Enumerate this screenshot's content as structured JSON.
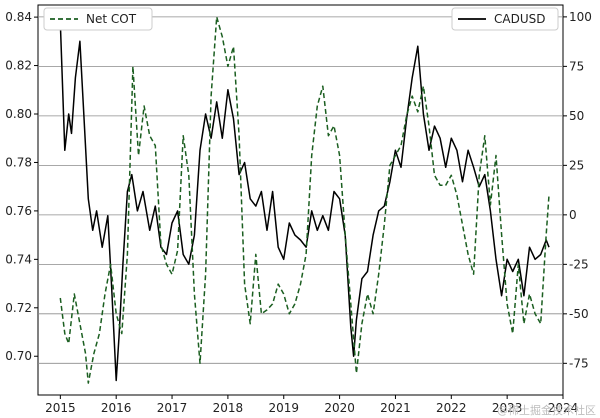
{
  "chart_data": {
    "type": "line",
    "title": "",
    "xlabel": "",
    "ylabel_left": "",
    "ylabel_right": "",
    "x_range": [
      2014.6,
      2024.0
    ],
    "x_ticks": [
      "2015",
      "2016",
      "2017",
      "2018",
      "2019",
      "2020",
      "2021",
      "2022",
      "2023",
      "2024"
    ],
    "ylim_left": [
      0.684,
      0.845
    ],
    "yticks_left": [
      "0.70",
      "0.72",
      "0.74",
      "0.76",
      "0.78",
      "0.80",
      "0.82",
      "0.84"
    ],
    "ylim_right": [
      -91,
      106
    ],
    "yticks_right": [
      "-75",
      "-50",
      "-25",
      "0",
      "25",
      "50",
      "75",
      "100"
    ],
    "grid": "horizontal lines at right-axis ticks",
    "legend_left": {
      "placement": "top-left",
      "label": "Net COT"
    },
    "legend_right": {
      "placement": "top-right",
      "label": "CADUSD"
    },
    "series": [
      {
        "name": "CADUSD",
        "axis": "left",
        "color": "#000000",
        "style": "solid",
        "x": [
          2015.0,
          2015.08,
          2015.15,
          2015.2,
          2015.27,
          2015.35,
          2015.42,
          2015.5,
          2015.58,
          2015.65,
          2015.75,
          2015.85,
          2015.92,
          2016.0,
          2016.05,
          2016.12,
          2016.2,
          2016.28,
          2016.38,
          2016.48,
          2016.6,
          2016.7,
          2016.8,
          2016.9,
          2017.0,
          2017.1,
          2017.2,
          2017.3,
          2017.4,
          2017.5,
          2017.6,
          2017.7,
          2017.8,
          2017.9,
          2018.0,
          2018.1,
          2018.2,
          2018.3,
          2018.4,
          2018.5,
          2018.6,
          2018.7,
          2018.8,
          2018.9,
          2019.0,
          2019.1,
          2019.2,
          2019.3,
          2019.4,
          2019.5,
          2019.6,
          2019.7,
          2019.8,
          2019.9,
          2020.0,
          2020.1,
          2020.2,
          2020.25,
          2020.3,
          2020.4,
          2020.5,
          2020.6,
          2020.7,
          2020.8,
          2020.9,
          2021.0,
          2021.1,
          2021.2,
          2021.3,
          2021.4,
          2021.5,
          2021.6,
          2021.7,
          2021.8,
          2021.9,
          2022.0,
          2022.1,
          2022.2,
          2022.3,
          2022.4,
          2022.5,
          2022.6,
          2022.7,
          2022.8,
          2022.9,
          2023.0,
          2023.1,
          2023.2,
          2023.3,
          2023.4,
          2023.5,
          2023.6,
          2023.7,
          2023.75
        ],
        "y": [
          0.838,
          0.785,
          0.8,
          0.792,
          0.815,
          0.83,
          0.8,
          0.765,
          0.752,
          0.76,
          0.745,
          0.758,
          0.728,
          0.69,
          0.708,
          0.738,
          0.768,
          0.775,
          0.76,
          0.768,
          0.752,
          0.762,
          0.745,
          0.742,
          0.755,
          0.76,
          0.742,
          0.738,
          0.75,
          0.785,
          0.8,
          0.79,
          0.805,
          0.79,
          0.81,
          0.798,
          0.775,
          0.78,
          0.765,
          0.762,
          0.768,
          0.752,
          0.768,
          0.745,
          0.74,
          0.755,
          0.75,
          0.748,
          0.745,
          0.76,
          0.752,
          0.758,
          0.752,
          0.768,
          0.765,
          0.75,
          0.712,
          0.7,
          0.715,
          0.732,
          0.735,
          0.75,
          0.76,
          0.762,
          0.772,
          0.785,
          0.778,
          0.798,
          0.815,
          0.828,
          0.8,
          0.785,
          0.795,
          0.79,
          0.778,
          0.79,
          0.785,
          0.772,
          0.785,
          0.778,
          0.77,
          0.775,
          0.76,
          0.74,
          0.725,
          0.74,
          0.735,
          0.74,
          0.725,
          0.745,
          0.74,
          0.742,
          0.748,
          0.745
        ]
      },
      {
        "name": "Net COT",
        "axis": "right",
        "color": "#1b5e20",
        "style": "dashed",
        "x": [
          2015.0,
          2015.08,
          2015.15,
          2015.25,
          2015.35,
          2015.45,
          2015.5,
          2015.6,
          2015.7,
          2015.8,
          2015.9,
          2016.0,
          2016.1,
          2016.2,
          2016.3,
          2016.4,
          2016.5,
          2016.6,
          2016.7,
          2016.8,
          2016.9,
          2017.0,
          2017.1,
          2017.2,
          2017.3,
          2017.4,
          2017.5,
          2017.6,
          2017.7,
          2017.8,
          2017.9,
          2018.0,
          2018.1,
          2018.2,
          2018.3,
          2018.4,
          2018.5,
          2018.6,
          2018.7,
          2018.8,
          2018.9,
          2019.0,
          2019.1,
          2019.2,
          2019.3,
          2019.4,
          2019.5,
          2019.6,
          2019.7,
          2019.8,
          2019.9,
          2020.0,
          2020.1,
          2020.2,
          2020.3,
          2020.4,
          2020.5,
          2020.6,
          2020.7,
          2020.8,
          2020.9,
          2021.0,
          2021.1,
          2021.2,
          2021.3,
          2021.4,
          2021.5,
          2021.6,
          2021.7,
          2021.8,
          2021.9,
          2022.0,
          2022.1,
          2022.2,
          2022.3,
          2022.4,
          2022.5,
          2022.6,
          2022.7,
          2022.8,
          2022.9,
          2023.0,
          2023.1,
          2023.2,
          2023.3,
          2023.4,
          2023.5,
          2023.6,
          2023.7,
          2023.75
        ],
        "y": [
          -42,
          -60,
          -65,
          -40,
          -55,
          -70,
          -85,
          -70,
          -60,
          -40,
          -25,
          -50,
          -60,
          -20,
          75,
          30,
          55,
          40,
          35,
          -15,
          -25,
          -30,
          -18,
          40,
          20,
          -40,
          -75,
          -30,
          60,
          100,
          90,
          75,
          85,
          40,
          -35,
          -55,
          -20,
          -50,
          -48,
          -45,
          -35,
          -40,
          -50,
          -45,
          -35,
          -20,
          30,
          55,
          65,
          40,
          45,
          30,
          -10,
          -45,
          -80,
          -55,
          -40,
          -50,
          -30,
          -5,
          25,
          30,
          35,
          50,
          60,
          52,
          65,
          45,
          20,
          15,
          15,
          20,
          10,
          -5,
          -20,
          -30,
          20,
          40,
          5,
          30,
          -10,
          -45,
          -60,
          -25,
          -55,
          -40,
          -50,
          -55,
          -10,
          10
        ]
      }
    ]
  },
  "watermark": "@稀土掘金技术社区"
}
